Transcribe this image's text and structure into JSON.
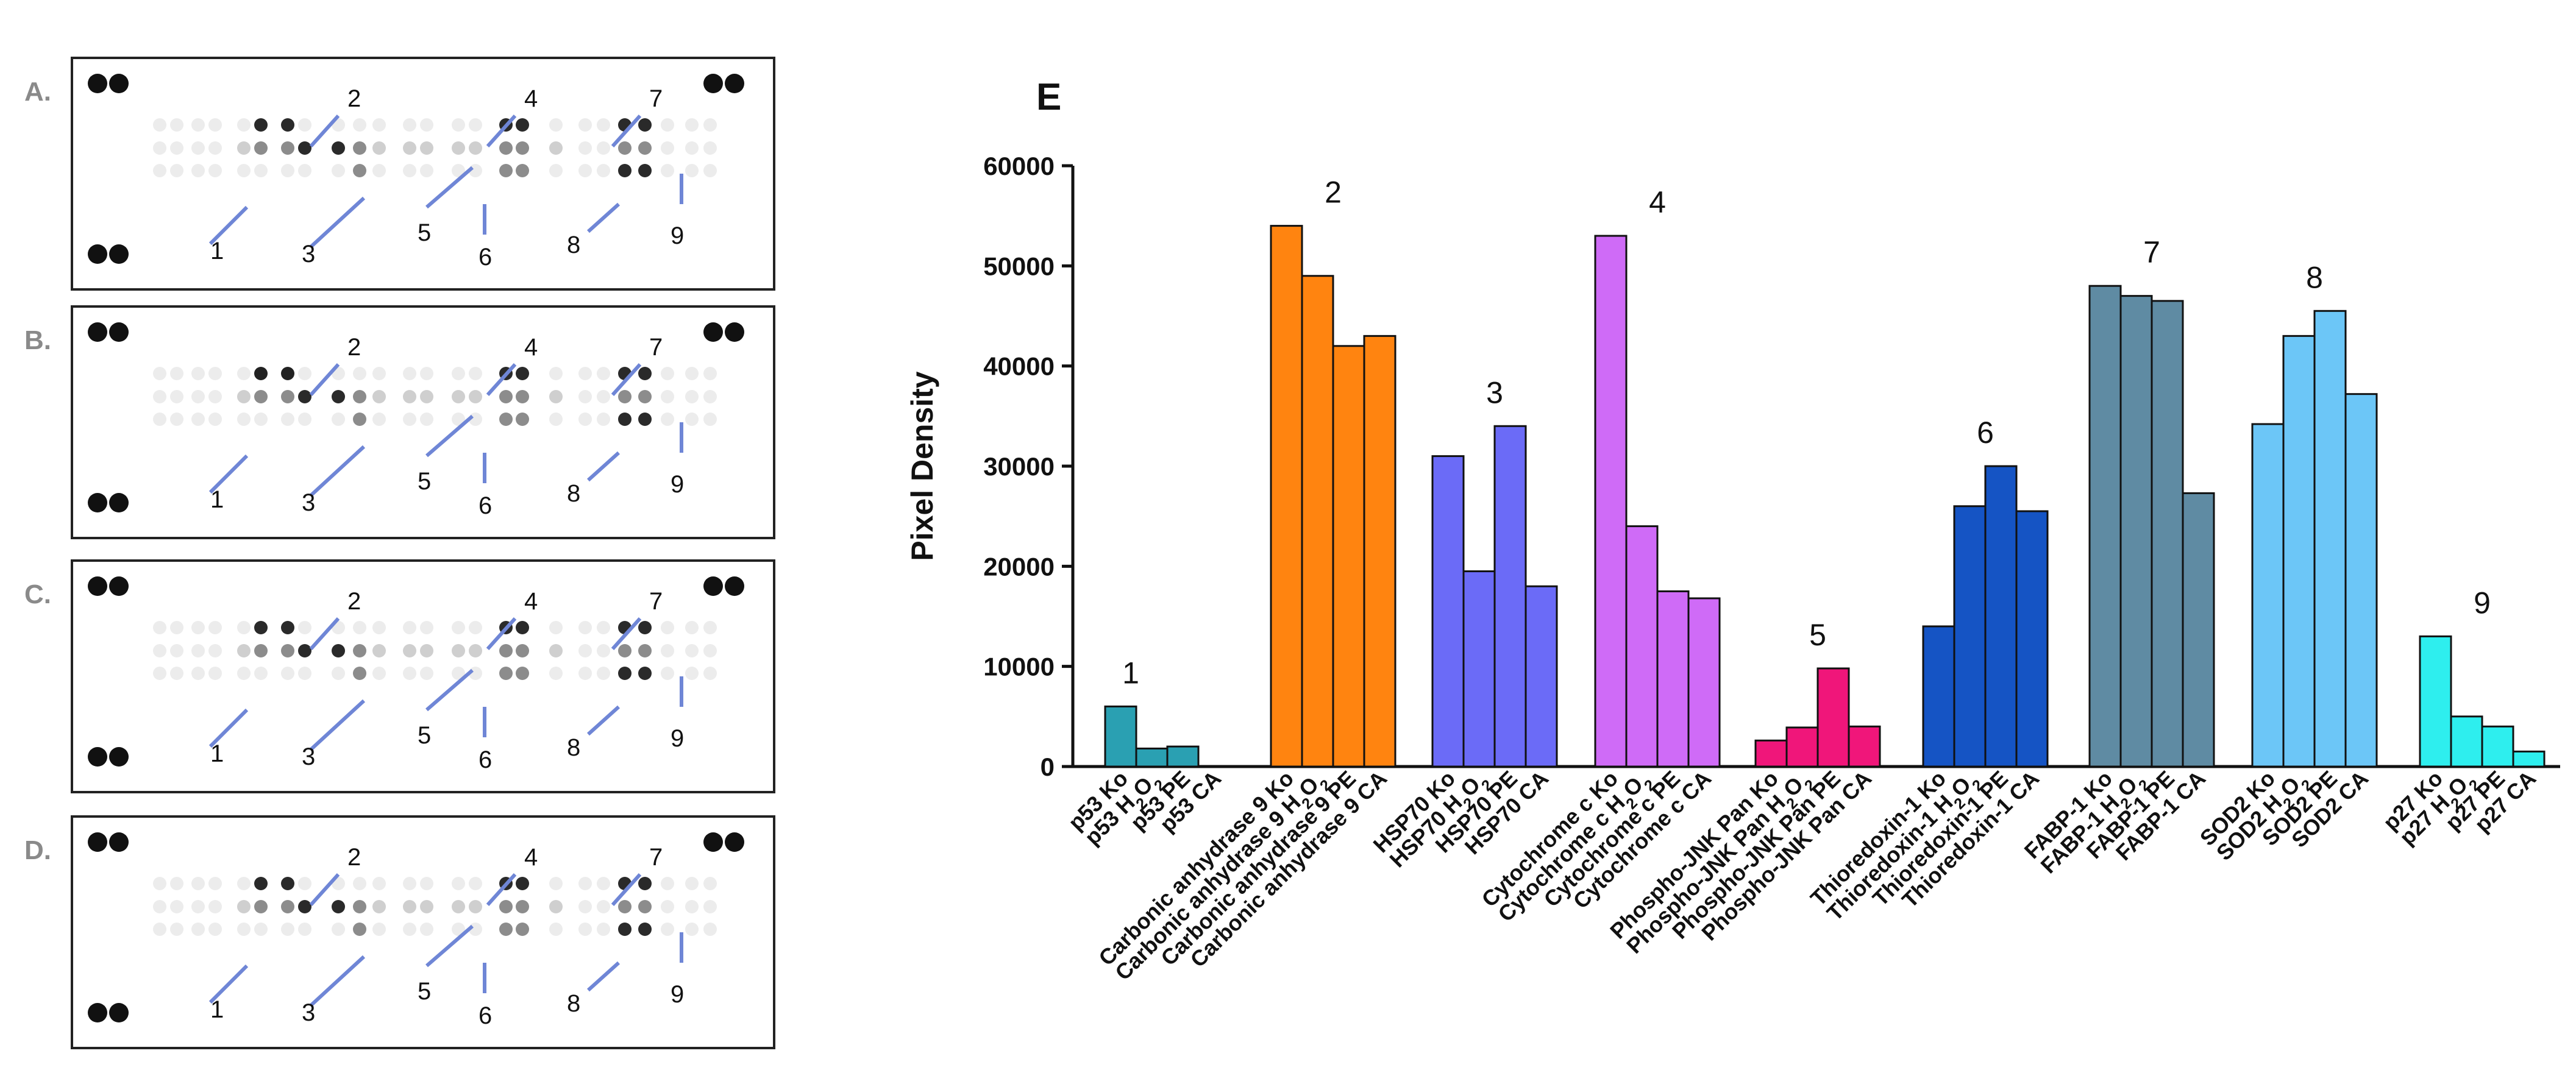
{
  "panel_labels": [
    "A.",
    "B.",
    "C.",
    "D."
  ],
  "panel_e_label": "E",
  "blot_markers": [
    "1",
    "2",
    "3",
    "4",
    "5",
    "6",
    "7",
    "8",
    "9"
  ],
  "chart_data": {
    "type": "bar",
    "title": "",
    "xlabel": "",
    "ylabel": "Pixel Density",
    "ylim": [
      0,
      60000
    ],
    "yticks": [
      0,
      10000,
      20000,
      30000,
      40000,
      50000,
      60000
    ],
    "grid": false,
    "groups": [
      {
        "label": "1",
        "color": "#2AA0B2",
        "bars": [
          {
            "category": "p53 Ko",
            "value": 6000
          },
          {
            "category": "p53 H2O2",
            "value": 1800
          },
          {
            "category": "p53 PE",
            "value": 2000
          },
          {
            "category": "p53 CA",
            "value": 0
          }
        ]
      },
      {
        "label": "2",
        "color": "#FF8410",
        "bars": [
          {
            "category": "Carbonic anhydrase 9 Ko",
            "value": 54000
          },
          {
            "category": "Carbonic anhydrase 9 H2O2",
            "value": 49000
          },
          {
            "category": "Carbonic anhydrase 9 PE",
            "value": 42000
          },
          {
            "category": "Carbonic anhydrase 9 CA",
            "value": 43000
          }
        ]
      },
      {
        "label": "3",
        "color": "#6B6BF7",
        "bars": [
          {
            "category": "HSP70 Ko",
            "value": 31000
          },
          {
            "category": "HSP70 H2O2",
            "value": 19500
          },
          {
            "category": "HSP70 PE",
            "value": 34000
          },
          {
            "category": "HSP70 CA",
            "value": 18000
          }
        ]
      },
      {
        "label": "4",
        "color": "#CF6BF7",
        "bars": [
          {
            "category": "Cytochrome c Ko",
            "value": 53000
          },
          {
            "category": "Cytochrome c H2O2",
            "value": 24000
          },
          {
            "category": "Cytochrome c PE",
            "value": 17500
          },
          {
            "category": "Cytochrome c CA",
            "value": 16800
          }
        ]
      },
      {
        "label": "5",
        "color": "#F0167A",
        "bars": [
          {
            "category": "Phospho-JNK Pan Ko",
            "value": 2600
          },
          {
            "category": "Phospho-JNK Pan H2O2",
            "value": 3900
          },
          {
            "category": "Phospho-JNK Pan PE",
            "value": 9800
          },
          {
            "category": "Phospho-JNK Pan CA",
            "value": 4000
          }
        ]
      },
      {
        "label": "6",
        "color": "#1554C4",
        "bars": [
          {
            "category": "Thioredoxin-1 Ko",
            "value": 14000
          },
          {
            "category": "Thioredoxin-1 H2O2",
            "value": 26000
          },
          {
            "category": "Thioredoxin-1 PE",
            "value": 30000
          },
          {
            "category": "Thioredoxin-1 CA",
            "value": 25500
          }
        ]
      },
      {
        "label": "7",
        "color": "#5F8BA3",
        "bars": [
          {
            "category": "FABP-1 Ko",
            "value": 48000
          },
          {
            "category": "FABP-1 H2O2",
            "value": 47000
          },
          {
            "category": "FABP-1 PE",
            "value": 46500
          },
          {
            "category": "FABP-1 CA",
            "value": 27300
          }
        ]
      },
      {
        "label": "8",
        "color": "#6CC6F7",
        "bars": [
          {
            "category": "SOD2 Ko",
            "value": 34200
          },
          {
            "category": "SOD2 H2O2",
            "value": 43000
          },
          {
            "category": "SOD2 PE",
            "value": 45500
          },
          {
            "category": "SOD2 CA",
            "value": 37200
          }
        ]
      },
      {
        "label": "9",
        "color": "#2EEEEE",
        "bars": [
          {
            "category": "p27 Ko",
            "value": 13000
          },
          {
            "category": "p27 H2O2",
            "value": 5000
          },
          {
            "category": "p27 PE",
            "value": 4000
          },
          {
            "category": "p27 CA",
            "value": 1500
          }
        ]
      }
    ]
  }
}
